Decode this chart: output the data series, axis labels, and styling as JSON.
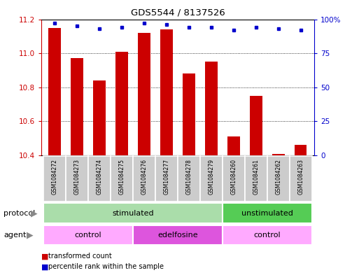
{
  "title": "GDS5544 / 8137526",
  "samples": [
    "GSM1084272",
    "GSM1084273",
    "GSM1084274",
    "GSM1084275",
    "GSM1084276",
    "GSM1084277",
    "GSM1084278",
    "GSM1084279",
    "GSM1084260",
    "GSM1084261",
    "GSM1084262",
    "GSM1084263"
  ],
  "transformed_count": [
    11.15,
    10.97,
    10.84,
    11.01,
    11.12,
    11.14,
    10.88,
    10.95,
    10.51,
    10.75,
    10.41,
    10.46
  ],
  "percentile_rank": [
    97,
    95,
    93,
    94,
    97,
    96,
    94,
    94,
    92,
    94,
    93,
    92
  ],
  "ylim_left": [
    10.4,
    11.2
  ],
  "ylim_right": [
    0,
    100
  ],
  "yticks_left": [
    10.4,
    10.6,
    10.8,
    11.0,
    11.2
  ],
  "yticks_right": [
    0,
    25,
    50,
    75,
    100
  ],
  "bar_color": "#cc0000",
  "dot_color": "#0000cc",
  "bar_width": 0.55,
  "protocol_labels": [
    {
      "text": "stimulated",
      "start": 0,
      "end": 7,
      "color": "#aaddaa"
    },
    {
      "text": "unstimulated",
      "start": 8,
      "end": 11,
      "color": "#55cc55"
    }
  ],
  "agent_labels": [
    {
      "text": "control",
      "start": 0,
      "end": 3,
      "color": "#ffaaff"
    },
    {
      "text": "edelfosine",
      "start": 4,
      "end": 7,
      "color": "#dd55dd"
    },
    {
      "text": "control",
      "start": 8,
      "end": 11,
      "color": "#ffaaff"
    }
  ],
  "protocol_row_label": "protocol",
  "agent_row_label": "agent",
  "legend_items": [
    {
      "label": "transformed count",
      "color": "#cc0000"
    },
    {
      "label": "percentile rank within the sample",
      "color": "#0000cc"
    }
  ],
  "background_color": "#ffffff",
  "tick_color_left": "#cc0000",
  "tick_color_right": "#0000cc",
  "label_box_color": "#cccccc",
  "arrow_color": "#888888"
}
